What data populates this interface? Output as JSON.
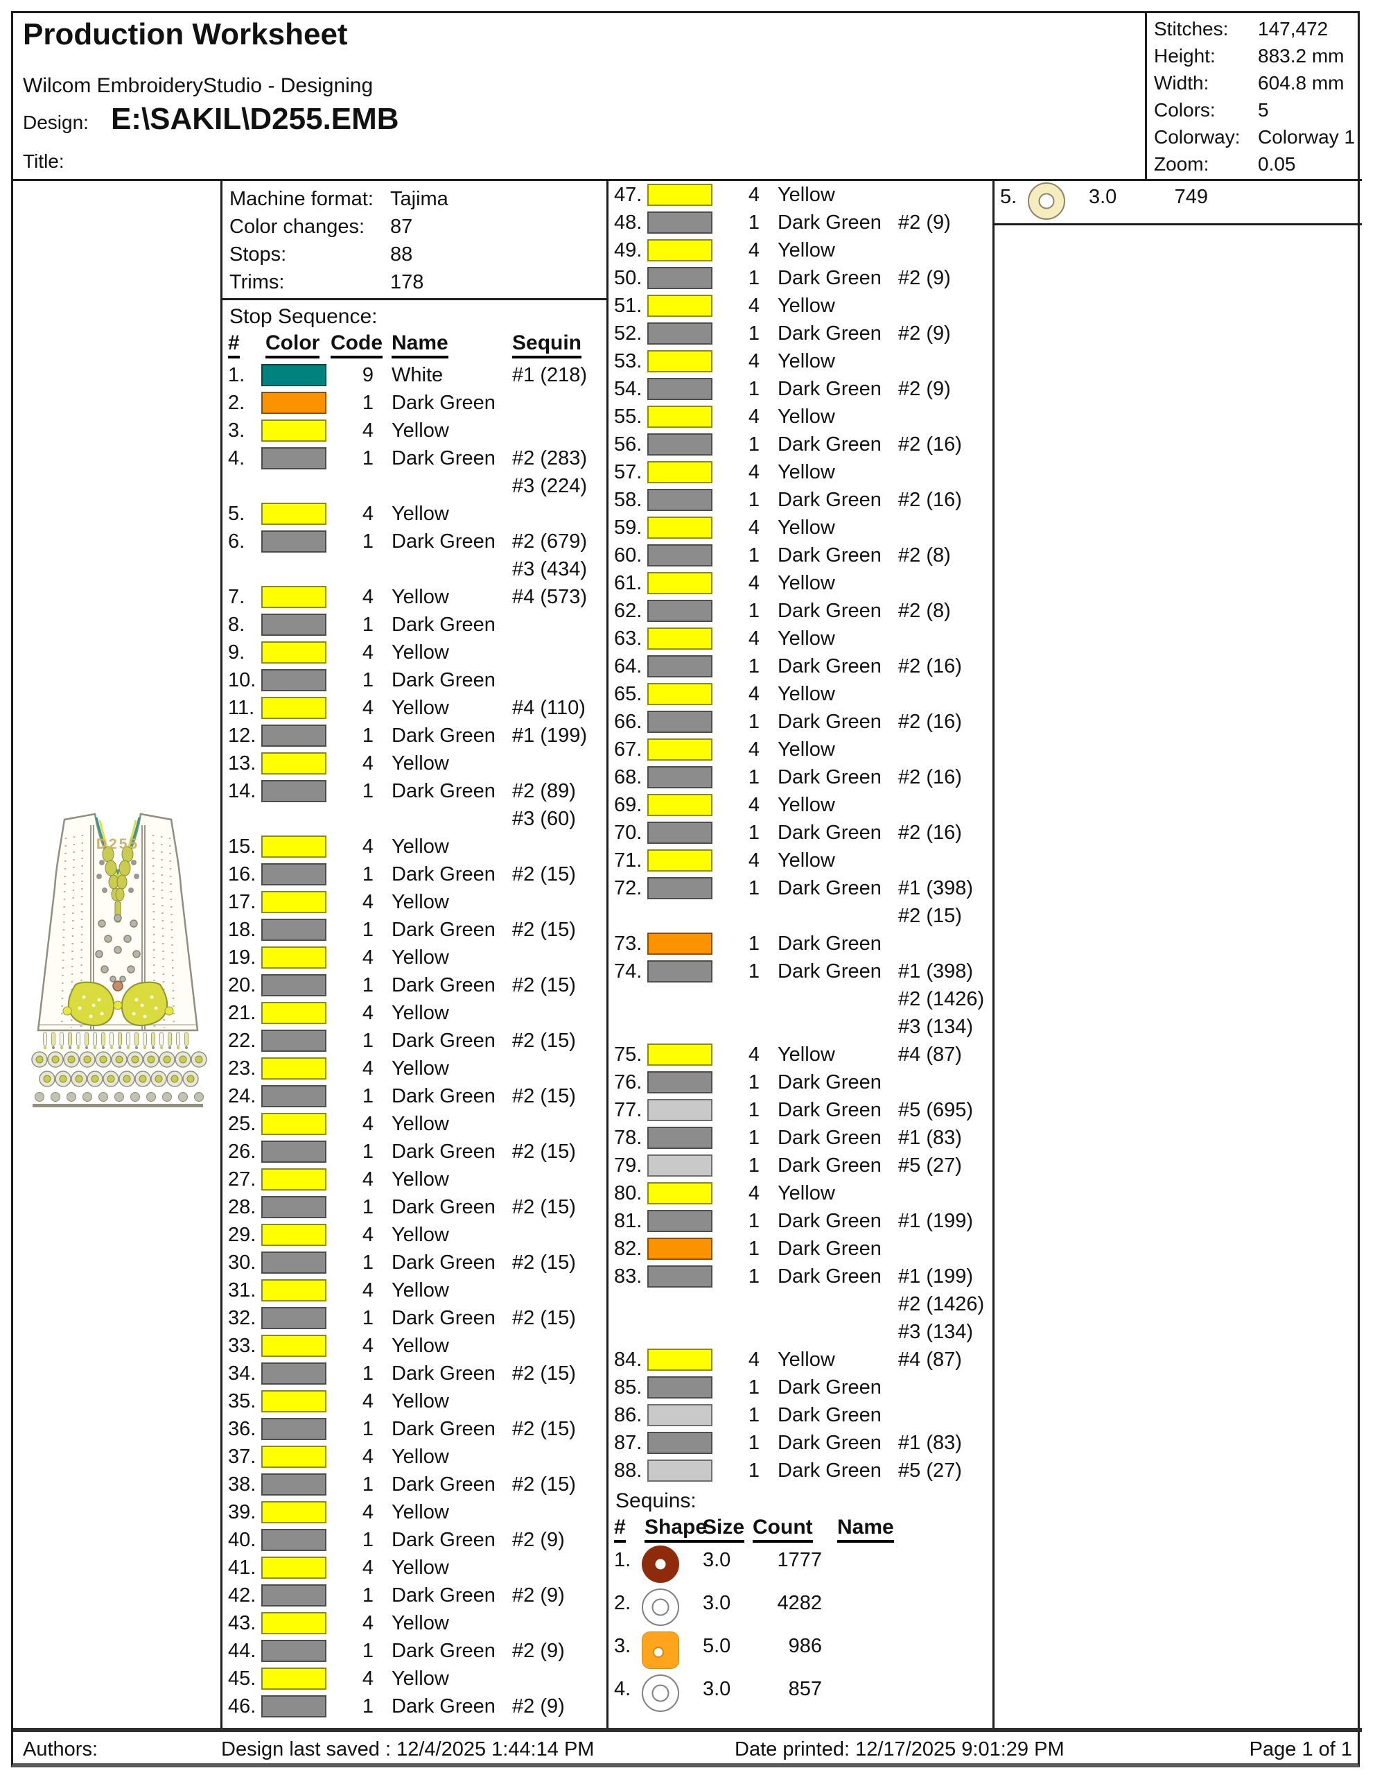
{
  "header": {
    "title": "Production Worksheet",
    "subtitle": "Wilcom EmbroideryStudio - Designing",
    "design_label": "Design:",
    "design_value": "E:\\SAKIL\\D255.EMB",
    "title_label": "Title:"
  },
  "info": {
    "rows": [
      {
        "label": "Stitches:",
        "value": "147,472"
      },
      {
        "label": "Height:",
        "value": "883.2 mm"
      },
      {
        "label": "Width:",
        "value": "604.8 mm"
      },
      {
        "label": "Colors:",
        "value": "5"
      },
      {
        "label": "Colorway:",
        "value": "Colorway 1"
      },
      {
        "label": "Zoom:",
        "value": "0.05"
      }
    ]
  },
  "machine": {
    "rows": [
      {
        "label": "Machine format:",
        "value": "Tajima"
      },
      {
        "label": "Color changes:",
        "value": "87"
      },
      {
        "label": "Stops:",
        "value": "88"
      },
      {
        "label": "Trims:",
        "value": "178"
      }
    ]
  },
  "stop_sequence": {
    "section_label": "Stop Sequence:",
    "columns": [
      "#",
      "Color",
      "Code",
      "Name",
      "Sequin"
    ],
    "rows": [
      {
        "n": 1,
        "color": "teal",
        "code": 9,
        "name": "White",
        "sequin": [
          "#1 (218)"
        ]
      },
      {
        "n": 2,
        "color": "orange",
        "code": 1,
        "name": "Dark Green",
        "sequin": []
      },
      {
        "n": 3,
        "color": "yellow",
        "code": 4,
        "name": "Yellow",
        "sequin": []
      },
      {
        "n": 4,
        "color": "gray",
        "code": 1,
        "name": "Dark Green",
        "sequin": [
          "#2 (283)",
          "#3 (224)"
        ]
      },
      {
        "n": 5,
        "color": "yellow",
        "code": 4,
        "name": "Yellow",
        "sequin": []
      },
      {
        "n": 6,
        "color": "gray",
        "code": 1,
        "name": "Dark Green",
        "sequin": [
          "#2 (679)",
          "#3 (434)"
        ]
      },
      {
        "n": 7,
        "color": "yellow",
        "code": 4,
        "name": "Yellow",
        "sequin": [
          "#4 (573)"
        ]
      },
      {
        "n": 8,
        "color": "gray",
        "code": 1,
        "name": "Dark Green",
        "sequin": []
      },
      {
        "n": 9,
        "color": "yellow",
        "code": 4,
        "name": "Yellow",
        "sequin": []
      },
      {
        "n": 10,
        "color": "gray",
        "code": 1,
        "name": "Dark Green",
        "sequin": []
      },
      {
        "n": 11,
        "color": "yellow",
        "code": 4,
        "name": "Yellow",
        "sequin": [
          "#4 (110)"
        ]
      },
      {
        "n": 12,
        "color": "gray",
        "code": 1,
        "name": "Dark Green",
        "sequin": [
          "#1 (199)"
        ]
      },
      {
        "n": 13,
        "color": "yellow",
        "code": 4,
        "name": "Yellow",
        "sequin": []
      },
      {
        "n": 14,
        "color": "gray",
        "code": 1,
        "name": "Dark Green",
        "sequin": [
          "#2 (89)",
          "#3 (60)"
        ]
      },
      {
        "n": 15,
        "color": "yellow",
        "code": 4,
        "name": "Yellow",
        "sequin": []
      },
      {
        "n": 16,
        "color": "gray",
        "code": 1,
        "name": "Dark Green",
        "sequin": [
          "#2 (15)"
        ]
      },
      {
        "n": 17,
        "color": "yellow",
        "code": 4,
        "name": "Yellow",
        "sequin": []
      },
      {
        "n": 18,
        "color": "gray",
        "code": 1,
        "name": "Dark Green",
        "sequin": [
          "#2 (15)"
        ]
      },
      {
        "n": 19,
        "color": "yellow",
        "code": 4,
        "name": "Yellow",
        "sequin": []
      },
      {
        "n": 20,
        "color": "gray",
        "code": 1,
        "name": "Dark Green",
        "sequin": [
          "#2 (15)"
        ]
      },
      {
        "n": 21,
        "color": "yellow",
        "code": 4,
        "name": "Yellow",
        "sequin": []
      },
      {
        "n": 22,
        "color": "gray",
        "code": 1,
        "name": "Dark Green",
        "sequin": [
          "#2 (15)"
        ]
      },
      {
        "n": 23,
        "color": "yellow",
        "code": 4,
        "name": "Yellow",
        "sequin": []
      },
      {
        "n": 24,
        "color": "gray",
        "code": 1,
        "name": "Dark Green",
        "sequin": [
          "#2 (15)"
        ]
      },
      {
        "n": 25,
        "color": "yellow",
        "code": 4,
        "name": "Yellow",
        "sequin": []
      },
      {
        "n": 26,
        "color": "gray",
        "code": 1,
        "name": "Dark Green",
        "sequin": [
          "#2 (15)"
        ]
      },
      {
        "n": 27,
        "color": "yellow",
        "code": 4,
        "name": "Yellow",
        "sequin": []
      },
      {
        "n": 28,
        "color": "gray",
        "code": 1,
        "name": "Dark Green",
        "sequin": [
          "#2 (15)"
        ]
      },
      {
        "n": 29,
        "color": "yellow",
        "code": 4,
        "name": "Yellow",
        "sequin": []
      },
      {
        "n": 30,
        "color": "gray",
        "code": 1,
        "name": "Dark Green",
        "sequin": [
          "#2 (15)"
        ]
      },
      {
        "n": 31,
        "color": "yellow",
        "code": 4,
        "name": "Yellow",
        "sequin": []
      },
      {
        "n": 32,
        "color": "gray",
        "code": 1,
        "name": "Dark Green",
        "sequin": [
          "#2 (15)"
        ]
      },
      {
        "n": 33,
        "color": "yellow",
        "code": 4,
        "name": "Yellow",
        "sequin": []
      },
      {
        "n": 34,
        "color": "gray",
        "code": 1,
        "name": "Dark Green",
        "sequin": [
          "#2 (15)"
        ]
      },
      {
        "n": 35,
        "color": "yellow",
        "code": 4,
        "name": "Yellow",
        "sequin": []
      },
      {
        "n": 36,
        "color": "gray",
        "code": 1,
        "name": "Dark Green",
        "sequin": [
          "#2 (15)"
        ]
      },
      {
        "n": 37,
        "color": "yellow",
        "code": 4,
        "name": "Yellow",
        "sequin": []
      },
      {
        "n": 38,
        "color": "gray",
        "code": 1,
        "name": "Dark Green",
        "sequin": [
          "#2 (15)"
        ]
      },
      {
        "n": 39,
        "color": "yellow",
        "code": 4,
        "name": "Yellow",
        "sequin": []
      },
      {
        "n": 40,
        "color": "gray",
        "code": 1,
        "name": "Dark Green",
        "sequin": [
          "#2 (9)"
        ]
      },
      {
        "n": 41,
        "color": "yellow",
        "code": 4,
        "name": "Yellow",
        "sequin": []
      },
      {
        "n": 42,
        "color": "gray",
        "code": 1,
        "name": "Dark Green",
        "sequin": [
          "#2 (9)"
        ]
      },
      {
        "n": 43,
        "color": "yellow",
        "code": 4,
        "name": "Yellow",
        "sequin": []
      },
      {
        "n": 44,
        "color": "gray",
        "code": 1,
        "name": "Dark Green",
        "sequin": [
          "#2 (9)"
        ]
      },
      {
        "n": 45,
        "color": "yellow",
        "code": 4,
        "name": "Yellow",
        "sequin": []
      },
      {
        "n": 46,
        "color": "gray",
        "code": 1,
        "name": "Dark Green",
        "sequin": [
          "#2 (9)"
        ]
      },
      {
        "n": 47,
        "color": "yellow",
        "code": 4,
        "name": "Yellow",
        "sequin": []
      },
      {
        "n": 48,
        "color": "gray",
        "code": 1,
        "name": "Dark Green",
        "sequin": [
          "#2 (9)"
        ]
      },
      {
        "n": 49,
        "color": "yellow",
        "code": 4,
        "name": "Yellow",
        "sequin": []
      },
      {
        "n": 50,
        "color": "gray",
        "code": 1,
        "name": "Dark Green",
        "sequin": [
          "#2 (9)"
        ]
      },
      {
        "n": 51,
        "color": "yellow",
        "code": 4,
        "name": "Yellow",
        "sequin": []
      },
      {
        "n": 52,
        "color": "gray",
        "code": 1,
        "name": "Dark Green",
        "sequin": [
          "#2 (9)"
        ]
      },
      {
        "n": 53,
        "color": "yellow",
        "code": 4,
        "name": "Yellow",
        "sequin": []
      },
      {
        "n": 54,
        "color": "gray",
        "code": 1,
        "name": "Dark Green",
        "sequin": [
          "#2 (9)"
        ]
      },
      {
        "n": 55,
        "color": "yellow",
        "code": 4,
        "name": "Yellow",
        "sequin": []
      },
      {
        "n": 56,
        "color": "gray",
        "code": 1,
        "name": "Dark Green",
        "sequin": [
          "#2 (16)"
        ]
      },
      {
        "n": 57,
        "color": "yellow",
        "code": 4,
        "name": "Yellow",
        "sequin": []
      },
      {
        "n": 58,
        "color": "gray",
        "code": 1,
        "name": "Dark Green",
        "sequin": [
          "#2 (16)"
        ]
      },
      {
        "n": 59,
        "color": "yellow",
        "code": 4,
        "name": "Yellow",
        "sequin": []
      },
      {
        "n": 60,
        "color": "gray",
        "code": 1,
        "name": "Dark Green",
        "sequin": [
          "#2 (8)"
        ]
      },
      {
        "n": 61,
        "color": "yellow",
        "code": 4,
        "name": "Yellow",
        "sequin": []
      },
      {
        "n": 62,
        "color": "gray",
        "code": 1,
        "name": "Dark Green",
        "sequin": [
          "#2 (8)"
        ]
      },
      {
        "n": 63,
        "color": "yellow",
        "code": 4,
        "name": "Yellow",
        "sequin": []
      },
      {
        "n": 64,
        "color": "gray",
        "code": 1,
        "name": "Dark Green",
        "sequin": [
          "#2 (16)"
        ]
      },
      {
        "n": 65,
        "color": "yellow",
        "code": 4,
        "name": "Yellow",
        "sequin": []
      },
      {
        "n": 66,
        "color": "gray",
        "code": 1,
        "name": "Dark Green",
        "sequin": [
          "#2 (16)"
        ]
      },
      {
        "n": 67,
        "color": "yellow",
        "code": 4,
        "name": "Yellow",
        "sequin": []
      },
      {
        "n": 68,
        "color": "gray",
        "code": 1,
        "name": "Dark Green",
        "sequin": [
          "#2 (16)"
        ]
      },
      {
        "n": 69,
        "color": "yellow",
        "code": 4,
        "name": "Yellow",
        "sequin": []
      },
      {
        "n": 70,
        "color": "gray",
        "code": 1,
        "name": "Dark Green",
        "sequin": [
          "#2 (16)"
        ]
      },
      {
        "n": 71,
        "color": "yellow",
        "code": 4,
        "name": "Yellow",
        "sequin": []
      },
      {
        "n": 72,
        "color": "gray",
        "code": 1,
        "name": "Dark Green",
        "sequin": [
          "#1 (398)",
          "#2 (15)"
        ]
      },
      {
        "n": 73,
        "color": "orange",
        "code": 1,
        "name": "Dark Green",
        "sequin": []
      },
      {
        "n": 74,
        "color": "gray",
        "code": 1,
        "name": "Dark Green",
        "sequin": [
          "#1 (398)",
          "#2 (1426)",
          "#3 (134)"
        ]
      },
      {
        "n": 75,
        "color": "yellow",
        "code": 4,
        "name": "Yellow",
        "sequin": [
          "#4 (87)"
        ]
      },
      {
        "n": 76,
        "color": "gray",
        "code": 1,
        "name": "Dark Green",
        "sequin": []
      },
      {
        "n": 77,
        "color": "lightgray",
        "code": 1,
        "name": "Dark Green",
        "sequin": [
          "#5 (695)"
        ]
      },
      {
        "n": 78,
        "color": "gray",
        "code": 1,
        "name": "Dark Green",
        "sequin": [
          "#1 (83)"
        ]
      },
      {
        "n": 79,
        "color": "lightgray",
        "code": 1,
        "name": "Dark Green",
        "sequin": [
          "#5 (27)"
        ]
      },
      {
        "n": 80,
        "color": "yellow",
        "code": 4,
        "name": "Yellow",
        "sequin": []
      },
      {
        "n": 81,
        "color": "gray",
        "code": 1,
        "name": "Dark Green",
        "sequin": [
          "#1 (199)"
        ]
      },
      {
        "n": 82,
        "color": "orange",
        "code": 1,
        "name": "Dark Green",
        "sequin": []
      },
      {
        "n": 83,
        "color": "gray",
        "code": 1,
        "name": "Dark Green",
        "sequin": [
          "#1 (199)",
          "#2 (1426)",
          "#3 (134)"
        ]
      },
      {
        "n": 84,
        "color": "yellow",
        "code": 4,
        "name": "Yellow",
        "sequin": [
          "#4 (87)"
        ]
      },
      {
        "n": 85,
        "color": "gray",
        "code": 1,
        "name": "Dark Green",
        "sequin": []
      },
      {
        "n": 86,
        "color": "lightgray",
        "code": 1,
        "name": "Dark Green",
        "sequin": []
      },
      {
        "n": 87,
        "color": "gray",
        "code": 1,
        "name": "Dark Green",
        "sequin": [
          "#1 (83)"
        ]
      },
      {
        "n": 88,
        "color": "lightgray",
        "code": 1,
        "name": "Dark Green",
        "sequin": [
          "#5 (27)"
        ]
      }
    ]
  },
  "sequins": {
    "section_label": "Sequins:",
    "columns": [
      "#",
      "Shape",
      "Size",
      "Count",
      "Name"
    ],
    "rows": [
      {
        "n": 1,
        "shape": "donut-darkred",
        "size": "3.0",
        "count": "1777",
        "name": ""
      },
      {
        "n": 2,
        "shape": "donut-white",
        "size": "3.0",
        "count": "4282",
        "name": ""
      },
      {
        "n": 3,
        "shape": "square-orange",
        "size": "5.0",
        "count": "986",
        "name": ""
      },
      {
        "n": 4,
        "shape": "donut-white",
        "size": "3.0",
        "count": "857",
        "name": ""
      },
      {
        "n": 5,
        "shape": "donut-cream",
        "size": "3.0",
        "count": "749",
        "name": ""
      }
    ]
  },
  "artwork": {
    "label": "D255"
  },
  "footer": {
    "authors_label": "Authors:",
    "last_saved": "Design last saved : 12/4/2025 1:44:14 PM",
    "date_printed": "Date printed: 12/17/2025 9:01:29 PM",
    "page": "Page 1 of 1"
  },
  "colors": {
    "swatches": {
      "teal": "#00837F",
      "orange": "#FB9200",
      "yellow": "#FFFF00",
      "gray": "#8C8C8C",
      "lightgray": "#C9C9C9"
    },
    "sequin_darkred": "#8E2B0B",
    "sequin_orange": "#FFA41C",
    "sequin_cream": "#F5ECC0"
  }
}
